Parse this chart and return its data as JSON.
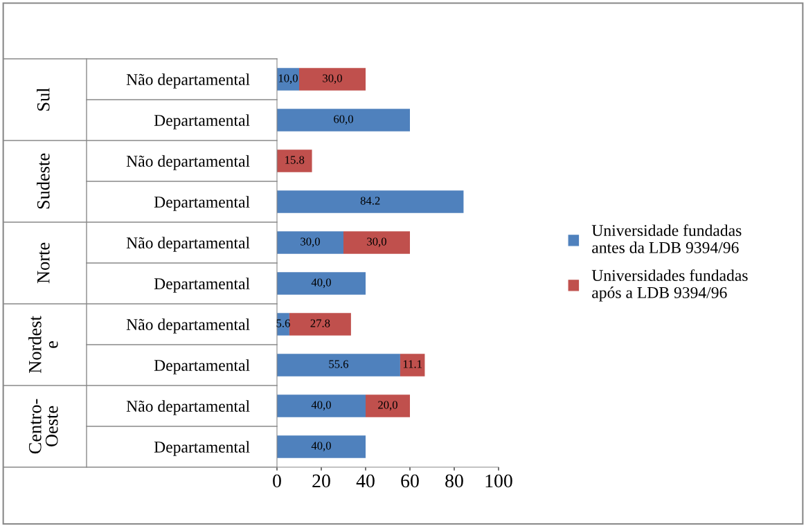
{
  "chart_data": {
    "type": "bar",
    "orientation": "horizontal",
    "stacked": true,
    "categories": [
      "Não departamental",
      "Departamental",
      "Não departamental",
      "Departamental",
      "Não departamental",
      "Departamental",
      "Não departamental",
      "Departamental",
      "Não departamental",
      "Departamental"
    ],
    "series": [
      {
        "name": "Universidade fundadas\nantes da LDB 9394/96",
        "color": "#4f81bd",
        "values": [
          10,
          60,
          null,
          84.2,
          30,
          40,
          5.6,
          55.6,
          40,
          40
        ],
        "value_labels": [
          "10,0",
          "60,0",
          null,
          "84.2",
          "30,0",
          "40,0",
          "5.6",
          "55.6",
          "40,0",
          "40,0"
        ]
      },
      {
        "name": "Universidades fundadas\napós a LDB 9394/96",
        "color": "#c0504d",
        "values": [
          30,
          null,
          15.8,
          null,
          30,
          null,
          27.8,
          11.1,
          20,
          null
        ],
        "value_labels": [
          "30,0",
          null,
          "15.8",
          null,
          "30,0",
          null,
          "27.8",
          "11.1",
          "20,0",
          null
        ]
      }
    ],
    "annotations": [
      "Sul",
      "Sudeste",
      "Norte",
      "Nordest\ne",
      "Centro-\nOeste"
    ],
    "xlim": [
      0,
      100
    ],
    "xticks": [
      0,
      20,
      40,
      60,
      80,
      100
    ],
    "grid": false,
    "legend": "right"
  }
}
